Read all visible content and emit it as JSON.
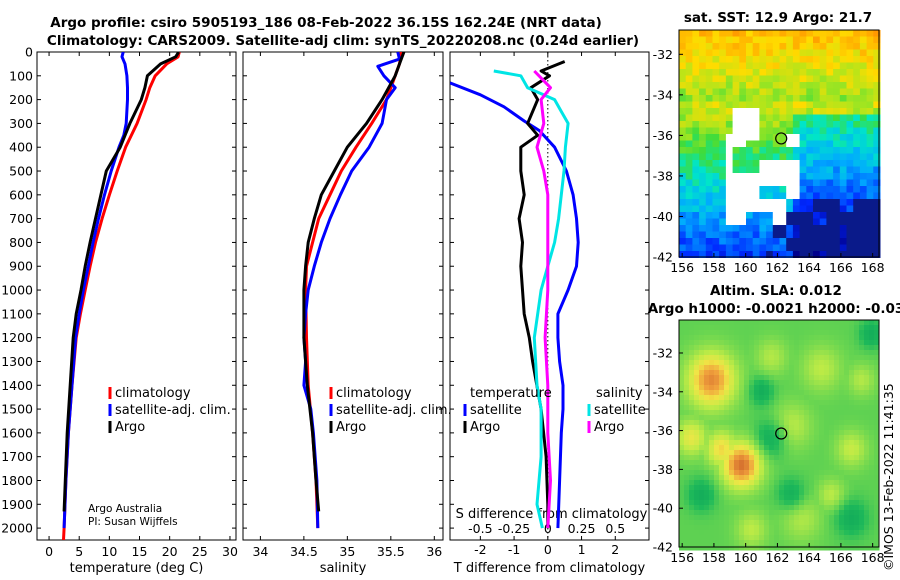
{
  "titles": {
    "line1": "Argo profile: csiro 5905193_186 08-Feb-2022 36.15S 162.24E (NRT data)",
    "line2": "Climatology: CARS2009. Satellite-adj clim: synTS_20220208.nc (0.24d earlier)",
    "sst": "sat. SST: 12.9 Argo: 21.7",
    "sla_line1": "Altim. SLA: 0.012",
    "sla_line2": "Argo h1000: -0.0021 h2000: -0.03",
    "footer_line1": "Argo Australia",
    "footer_line2": "PI: Susan Wijffels",
    "stamp": "©IMOS 13-Feb-2022 11:41:35"
  },
  "colors": {
    "climatology": "#ff0000",
    "satellite": "#0000ff",
    "argo": "#000000",
    "sat_salinity": "#00e5e5",
    "argo_salinity": "#ff00ff"
  },
  "chart_data": [
    {
      "id": "temperature",
      "type": "line",
      "xlabel": "temperature (deg C)",
      "ylabel": "pressure",
      "xlim": [
        -2,
        31
      ],
      "ylim": [
        2050,
        0
      ],
      "xticks": [
        "0",
        "5",
        "10",
        "15",
        "20",
        "25",
        "30"
      ],
      "yticks": [
        "0",
        "100",
        "200",
        "300",
        "400",
        "500",
        "600",
        "700",
        "800",
        "900",
        "1000",
        "1100",
        "1200",
        "1300",
        "1400",
        "1500",
        "1600",
        "1700",
        "1800",
        "1900",
        "2000"
      ],
      "legend": [
        "climatology",
        "satellite-adj. clim.",
        "Argo"
      ],
      "series": [
        {
          "name": "climatology",
          "color": "red",
          "depth": [
            0,
            20,
            50,
            100,
            150,
            200,
            300,
            400,
            500,
            600,
            700,
            800,
            900,
            1000,
            1100,
            1200,
            1400,
            1600,
            1800,
            2000,
            2050
          ],
          "values": [
            21.6,
            21.4,
            19.5,
            17.6,
            16.7,
            16.1,
            14.6,
            12.7,
            11.3,
            10.0,
            8.8,
            7.7,
            6.8,
            6.0,
            5.2,
            4.5,
            3.8,
            3.2,
            2.8,
            2.5,
            2.4
          ]
        },
        {
          "name": "satellite-adj. clim.",
          "color": "blue",
          "depth": [
            0,
            20,
            50,
            100,
            150,
            200,
            300,
            350,
            400,
            500,
            600,
            700,
            800,
            900,
            1000,
            1100,
            1200,
            1400,
            1600,
            1800,
            2000
          ],
          "values": [
            12.3,
            12.1,
            12.6,
            12.9,
            13.0,
            13.0,
            12.8,
            12.4,
            11.6,
            10.3,
            9.2,
            8.2,
            7.3,
            6.5,
            5.7,
            5.0,
            4.4,
            3.8,
            3.2,
            2.8,
            2.5
          ]
        },
        {
          "name": "Argo",
          "color": "black",
          "depth": [
            0,
            20,
            50,
            100,
            150,
            200,
            300,
            400,
            500,
            600,
            700,
            800,
            900,
            1000,
            1100,
            1200,
            1400,
            1600,
            1800,
            1930
          ],
          "values": [
            21.5,
            21.0,
            18.5,
            16.3,
            15.9,
            15.3,
            13.4,
            11.8,
            9.5,
            8.6,
            7.7,
            6.8,
            6.0,
            5.3,
            4.5,
            4.0,
            3.5,
            3.0,
            2.7,
            2.5
          ]
        }
      ]
    },
    {
      "id": "salinity",
      "type": "line",
      "xlabel": "salinity",
      "ylabel": "",
      "xlim": [
        33.8,
        36.1
      ],
      "ylim": [
        2050,
        0
      ],
      "xticks": [
        "34",
        "34.5",
        "35",
        "35.5",
        "36"
      ],
      "legend": [
        "climatology",
        "satellite-adj. clim.",
        "Argo"
      ],
      "series": [
        {
          "name": "climatology",
          "color": "red",
          "depth": [
            0,
            50,
            100,
            200,
            300,
            400,
            500,
            600,
            700,
            800,
            900,
            1000,
            1200,
            1400,
            1600,
            1800,
            2000
          ],
          "values": [
            35.62,
            35.6,
            35.55,
            35.45,
            35.28,
            35.1,
            34.93,
            34.8,
            34.67,
            34.6,
            34.53,
            34.52,
            34.53,
            34.55,
            34.6,
            34.64,
            34.66
          ]
        },
        {
          "name": "satellite-adj. clim.",
          "color": "blue",
          "depth": [
            0,
            30,
            60,
            100,
            150,
            200,
            300,
            400,
            500,
            600,
            700,
            800,
            900,
            1000,
            1100,
            1200,
            1300,
            1400,
            1500,
            1600,
            1800,
            2000
          ],
          "values": [
            35.58,
            35.6,
            35.35,
            35.42,
            35.55,
            35.45,
            35.4,
            35.25,
            35.05,
            34.92,
            34.8,
            34.7,
            34.62,
            34.55,
            34.52,
            34.5,
            34.52,
            34.5,
            34.58,
            34.61,
            34.65,
            34.66
          ]
        },
        {
          "name": "Argo",
          "color": "black",
          "depth": [
            0,
            50,
            100,
            200,
            300,
            400,
            500,
            600,
            700,
            800,
            900,
            1000,
            1200,
            1400,
            1600,
            1800,
            1930
          ],
          "values": [
            35.65,
            35.6,
            35.55,
            35.4,
            35.22,
            35.0,
            34.85,
            34.7,
            34.62,
            34.55,
            34.52,
            34.5,
            34.5,
            34.54,
            34.6,
            34.64,
            34.67
          ]
        }
      ]
    },
    {
      "id": "difference",
      "type": "line",
      "xlabel": "T difference from climatology",
      "xlabel_top": "S difference from climatology",
      "xlim": [
        -2.9,
        3.0
      ],
      "ylim": [
        2050,
        0
      ],
      "xticks": [
        "-2",
        "-1",
        "0",
        "1",
        "2"
      ],
      "xticks_s": [
        "-0.5",
        "-0.25",
        "0",
        "0.25",
        "0.5"
      ],
      "legend_titles": [
        "temperature",
        "salinity"
      ],
      "legend_t": [
        "satellite",
        "Argo"
      ],
      "legend_s": [
        "satellite",
        "Argo"
      ],
      "series": [
        {
          "name": "T satellite",
          "color": "blue",
          "depth": [
            130,
            180,
            230,
            290,
            330,
            400,
            500,
            600,
            700,
            800,
            900,
            1000,
            1100,
            1200,
            1300,
            1400,
            1500,
            1600,
            1800,
            2000
          ],
          "values": [
            -2.9,
            -2.0,
            -1.3,
            -0.7,
            -0.25,
            0.2,
            0.55,
            0.75,
            0.85,
            0.9,
            0.85,
            0.6,
            0.3,
            0.3,
            0.35,
            0.45,
            0.45,
            0.4,
            0.35,
            0.3
          ]
        },
        {
          "name": "T Argo",
          "color": "black",
          "depth": [
            40,
            80,
            100,
            150,
            200,
            300,
            350,
            400,
            500,
            600,
            700,
            800,
            900,
            1000,
            1100,
            1200,
            1300,
            1500,
            1700,
            1900,
            2000
          ],
          "values": [
            0.5,
            -0.2,
            0.05,
            -0.5,
            -0.3,
            -0.6,
            -0.3,
            -0.8,
            -0.8,
            -0.7,
            -0.85,
            -0.75,
            -0.8,
            -0.75,
            -0.7,
            -0.55,
            -0.45,
            -0.2,
            -0.05,
            0.0,
            0.0
          ]
        },
        {
          "name": "S satellite",
          "color": "cyan",
          "depth": [
            80,
            100,
            150,
            200,
            250,
            300,
            400,
            500,
            600,
            700,
            800,
            900,
            1000,
            1200,
            1400,
            1500,
            1700,
            1900,
            2000
          ],
          "values": [
            -0.4,
            -0.2,
            -0.15,
            0.05,
            0.1,
            0.15,
            0.13,
            0.12,
            0.1,
            0.08,
            0.05,
            0.0,
            -0.05,
            -0.1,
            -0.08,
            -0.05,
            -0.05,
            -0.08,
            -0.04
          ]
        },
        {
          "name": "S Argo",
          "color": "magenta",
          "depth": [
            80,
            150,
            200,
            300,
            400,
            500,
            600,
            800,
            1000,
            1200,
            1400,
            1600,
            1800,
            2000
          ],
          "values": [
            -0.1,
            0.02,
            -0.05,
            -0.03,
            -0.08,
            -0.03,
            0.0,
            0.0,
            0.0,
            -0.02,
            0.0,
            0.0,
            0.02,
            0.0
          ]
        }
      ]
    },
    {
      "id": "sst-map",
      "type": "heatmap",
      "xticks": [
        "156",
        "158",
        "160",
        "162",
        "164",
        "166",
        "168"
      ],
      "yticks": [
        "-32",
        "-34",
        "-36",
        "-38",
        "-40",
        "-42"
      ],
      "xlim": [
        155.8,
        168.4
      ],
      "ylim": [
        -42,
        -30.8
      ],
      "marker": {
        "lon": 162.24,
        "lat": -36.15
      }
    },
    {
      "id": "sla-map",
      "type": "heatmap",
      "xticks": [
        "156",
        "158",
        "160",
        "162",
        "164",
        "166",
        "168"
      ],
      "yticks": [
        "-32",
        "-34",
        "-36",
        "-38",
        "-40",
        "-42"
      ],
      "xlim": [
        155.8,
        168.4
      ],
      "ylim": [
        -42,
        -30.3
      ],
      "marker": {
        "lon": 162.24,
        "lat": -36.15
      }
    }
  ]
}
